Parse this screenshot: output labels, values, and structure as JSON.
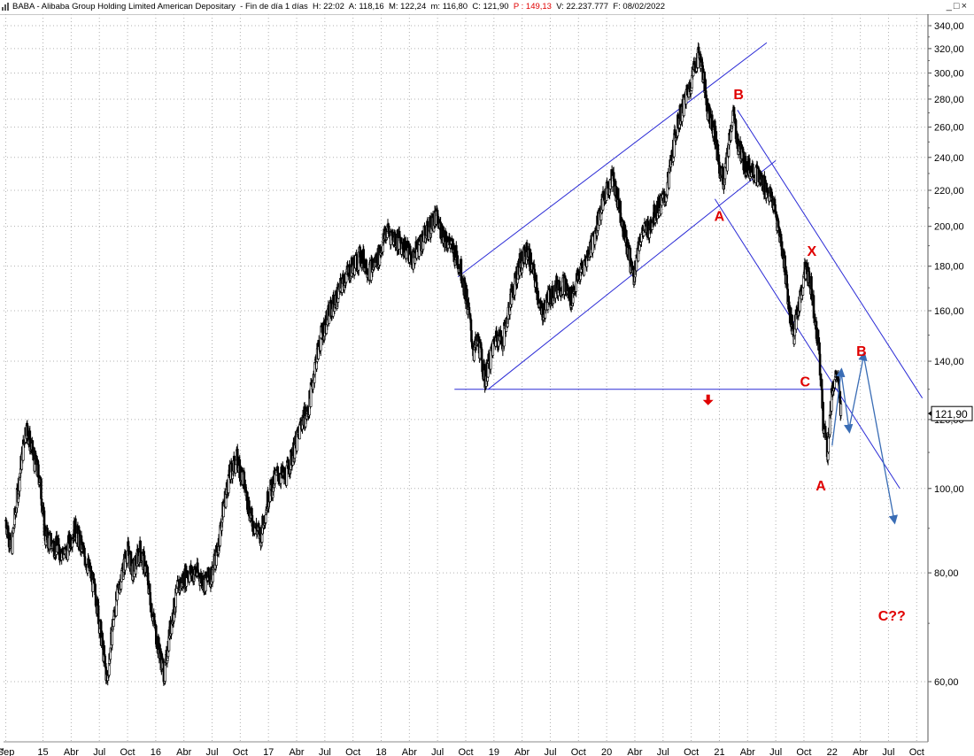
{
  "title_bar": {
    "symbol": "BABA",
    "description": "Alibaba Group Holding Limited American Depositary",
    "period": "Fin de día 1 días",
    "hour": "H: 22:02",
    "open": "A: 118,16",
    "high": "M: 122,24",
    "low": "m: 116,80",
    "close": "C: 121,90",
    "p_value": "P : 149,13",
    "volume": "V: 22.237.777",
    "date": "F: 08/02/2022"
  },
  "window_controls": {
    "minimize": "_",
    "maximize": "□",
    "close": "×"
  },
  "chart_data": {
    "type": "candlestick",
    "scale": "log",
    "grid": true,
    "ylim": [
      55,
      345
    ],
    "y_ticks": [
      "340,00",
      "320,00",
      "300,00",
      "280,00",
      "260,00",
      "240,00",
      "220,00",
      "200,00",
      "180,00",
      "160,00",
      "140,00",
      "120,00",
      "100,00",
      "80,00",
      "60,00"
    ],
    "y_tick_values": [
      340,
      320,
      300,
      280,
      260,
      240,
      220,
      200,
      180,
      160,
      140,
      120,
      100,
      80,
      60
    ],
    "x_ticks": [
      "Sep",
      "15",
      "Abr",
      "Jul",
      "Oct",
      "16",
      "Abr",
      "Jul",
      "Oct",
      "17",
      "Abr",
      "Jul",
      "Oct",
      "18",
      "Abr",
      "Jul",
      "Oct",
      "19",
      "Abr",
      "Jul",
      "Oct",
      "20",
      "Abr",
      "Jul",
      "Oct",
      "21",
      "Abr",
      "Jul",
      "Oct",
      "22",
      "Abr",
      "Jul",
      "Oct"
    ],
    "x_tick_values": [
      2014.67,
      2015.0,
      2015.25,
      2015.5,
      2015.75,
      2016.0,
      2016.25,
      2016.5,
      2016.75,
      2017.0,
      2017.25,
      2017.5,
      2017.75,
      2018.0,
      2018.25,
      2018.5,
      2018.75,
      2019.0,
      2019.25,
      2019.5,
      2019.75,
      2020.0,
      2020.25,
      2020.5,
      2020.75,
      2021.0,
      2021.25,
      2021.5,
      2021.75,
      2022.0,
      2022.25,
      2022.5,
      2022.75
    ],
    "xlim": [
      2014.65,
      2022.85
    ],
    "current_price_label": "121,90",
    "current_price": 121.9,
    "price_path": [
      [
        2014.67,
        92
      ],
      [
        2014.72,
        85
      ],
      [
        2014.78,
        100
      ],
      [
        2014.85,
        118
      ],
      [
        2014.92,
        108
      ],
      [
        2014.97,
        103
      ],
      [
        2015.02,
        88
      ],
      [
        2015.1,
        86
      ],
      [
        2015.2,
        84
      ],
      [
        2015.28,
        90
      ],
      [
        2015.35,
        85
      ],
      [
        2015.42,
        80
      ],
      [
        2015.47,
        75
      ],
      [
        2015.52,
        67
      ],
      [
        2015.57,
        60
      ],
      [
        2015.62,
        70
      ],
      [
        2015.68,
        78
      ],
      [
        2015.75,
        85
      ],
      [
        2015.8,
        80
      ],
      [
        2015.86,
        85
      ],
      [
        2015.92,
        80
      ],
      [
        2015.97,
        72
      ],
      [
        2016.02,
        66
      ],
      [
        2016.08,
        61
      ],
      [
        2016.12,
        68
      ],
      [
        2016.2,
        77
      ],
      [
        2016.28,
        80
      ],
      [
        2016.36,
        80
      ],
      [
        2016.44,
        78
      ],
      [
        2016.5,
        80
      ],
      [
        2016.55,
        85
      ],
      [
        2016.6,
        95
      ],
      [
        2016.65,
        103
      ],
      [
        2016.72,
        108
      ],
      [
        2016.78,
        102
      ],
      [
        2016.85,
        92
      ],
      [
        2016.93,
        88
      ],
      [
        2017.0,
        98
      ],
      [
        2017.08,
        104
      ],
      [
        2017.15,
        103
      ],
      [
        2017.25,
        113
      ],
      [
        2017.3,
        120
      ],
      [
        2017.35,
        122
      ],
      [
        2017.42,
        140
      ],
      [
        2017.47,
        150
      ],
      [
        2017.55,
        160
      ],
      [
        2017.6,
        165
      ],
      [
        2017.68,
        175
      ],
      [
        2017.75,
        180
      ],
      [
        2017.82,
        185
      ],
      [
        2017.9,
        178
      ],
      [
        2017.98,
        185
      ],
      [
        2018.05,
        198
      ],
      [
        2018.1,
        195
      ],
      [
        2018.2,
        190
      ],
      [
        2018.28,
        183
      ],
      [
        2018.35,
        192
      ],
      [
        2018.42,
        198
      ],
      [
        2018.48,
        205
      ],
      [
        2018.55,
        196
      ],
      [
        2018.62,
        190
      ],
      [
        2018.7,
        180
      ],
      [
        2018.76,
        165
      ],
      [
        2018.82,
        143
      ],
      [
        2018.86,
        148
      ],
      [
        2018.92,
        133
      ],
      [
        2018.96,
        140
      ],
      [
        2019.02,
        150
      ],
      [
        2019.08,
        148
      ],
      [
        2019.15,
        165
      ],
      [
        2019.22,
        180
      ],
      [
        2019.3,
        187
      ],
      [
        2019.38,
        170
      ],
      [
        2019.42,
        158
      ],
      [
        2019.48,
        165
      ],
      [
        2019.55,
        170
      ],
      [
        2019.62,
        172
      ],
      [
        2019.68,
        165
      ],
      [
        2019.75,
        175
      ],
      [
        2019.82,
        183
      ],
      [
        2019.9,
        197
      ],
      [
        2019.95,
        210
      ],
      [
        2020.0,
        220
      ],
      [
        2020.05,
        228
      ],
      [
        2020.1,
        215
      ],
      [
        2020.18,
        190
      ],
      [
        2020.24,
        175
      ],
      [
        2020.3,
        195
      ],
      [
        2020.38,
        200
      ],
      [
        2020.45,
        210
      ],
      [
        2020.52,
        215
      ],
      [
        2020.58,
        240
      ],
      [
        2020.62,
        260
      ],
      [
        2020.68,
        275
      ],
      [
        2020.74,
        290
      ],
      [
        2020.78,
        305
      ],
      [
        2020.82,
        318
      ],
      [
        2020.86,
        295
      ],
      [
        2020.9,
        270
      ],
      [
        2020.95,
        260
      ],
      [
        2021.0,
        235
      ],
      [
        2021.04,
        225
      ],
      [
        2021.08,
        245
      ],
      [
        2021.12,
        270
      ],
      [
        2021.16,
        250
      ],
      [
        2021.22,
        236
      ],
      [
        2021.3,
        232
      ],
      [
        2021.36,
        226
      ],
      [
        2021.42,
        220
      ],
      [
        2021.48,
        212
      ],
      [
        2021.52,
        200
      ],
      [
        2021.58,
        180
      ],
      [
        2021.62,
        160
      ],
      [
        2021.66,
        150
      ],
      [
        2021.72,
        166
      ],
      [
        2021.76,
        178
      ],
      [
        2021.8,
        175
      ],
      [
        2021.84,
        160
      ],
      [
        2021.88,
        146
      ],
      [
        2021.92,
        120
      ],
      [
        2021.96,
        110
      ],
      [
        2022.0,
        130
      ],
      [
        2022.04,
        135
      ],
      [
        2022.08,
        122
      ]
    ],
    "annotations": [
      {
        "text": "B",
        "x": 2021.17,
        "y": 280,
        "color": "#e00000"
      },
      {
        "text": "A",
        "x": 2021.0,
        "y": 203,
        "color": "#e00000"
      },
      {
        "text": "X",
        "x": 2021.82,
        "y": 185,
        "color": "#e00000"
      },
      {
        "text": "C",
        "x": 2021.76,
        "y": 131,
        "color": "#e00000"
      },
      {
        "text": "B",
        "x": 2022.26,
        "y": 142,
        "color": "#e00000"
      },
      {
        "text": "A",
        "x": 2021.9,
        "y": 99.5,
        "color": "#e00000"
      },
      {
        "text": "C??",
        "x": 2022.53,
        "y": 70.5,
        "color": "#e00000"
      }
    ],
    "trend_lines": [
      {
        "from": [
          2018.68,
          175
        ],
        "to": [
          2021.42,
          325
        ]
      },
      {
        "from": [
          2018.95,
          130
        ],
        "to": [
          2021.5,
          238
        ]
      },
      {
        "from": [
          2021.16,
          272
        ],
        "to": [
          2022.8,
          127
        ]
      },
      {
        "from": [
          2020.96,
          215
        ],
        "to": [
          2022.6,
          100
        ]
      },
      {
        "from": [
          2018.65,
          130
        ],
        "to": [
          2022.05,
          130
        ]
      }
    ],
    "projection": [
      [
        2022.0,
        112
      ],
      [
        2022.08,
        136
      ],
      [
        2022.15,
        117
      ],
      [
        2022.28,
        142
      ],
      [
        2022.55,
        92
      ]
    ]
  }
}
